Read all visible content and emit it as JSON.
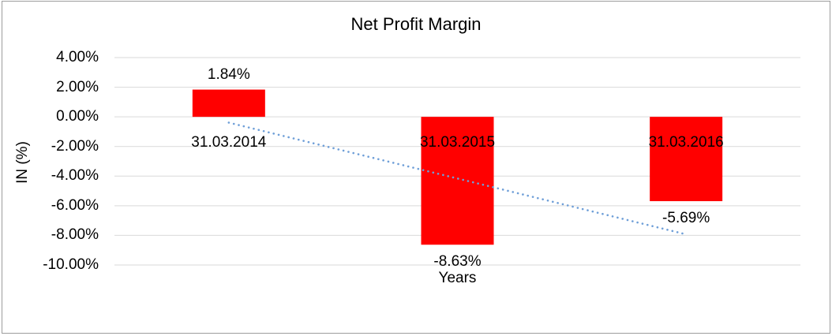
{
  "window": {
    "background": "#ffffff",
    "border_color": "#9d9d9d"
  },
  "chart_data": {
    "type": "bar",
    "title": "Net Profit Margin",
    "xlabel": "Years",
    "ylabel": "IN (%)",
    "categories": [
      "31.03.2014",
      "31.03.2015",
      "31.03.2016"
    ],
    "values": [
      1.84,
      -8.63,
      -5.69
    ],
    "value_labels": [
      "1.84%",
      "-8.63%",
      "-5.69%"
    ],
    "bar_color": "#ff0000",
    "text_color": "#000000",
    "ylim": [
      -10,
      4
    ],
    "ytick_step": 2,
    "ytick_labels": [
      "4.00%",
      "2.00%",
      "0.00%",
      "-2.00%",
      "-4.00%",
      "-6.00%",
      "-8.00%",
      "-10.00%"
    ],
    "grid": true,
    "gridline_color": "#d9d9d9",
    "legend": "none",
    "trendline": {
      "type": "linear",
      "style": "dotted",
      "color": "#6f9fd8",
      "start_value": -0.39,
      "end_value": -7.93
    }
  }
}
